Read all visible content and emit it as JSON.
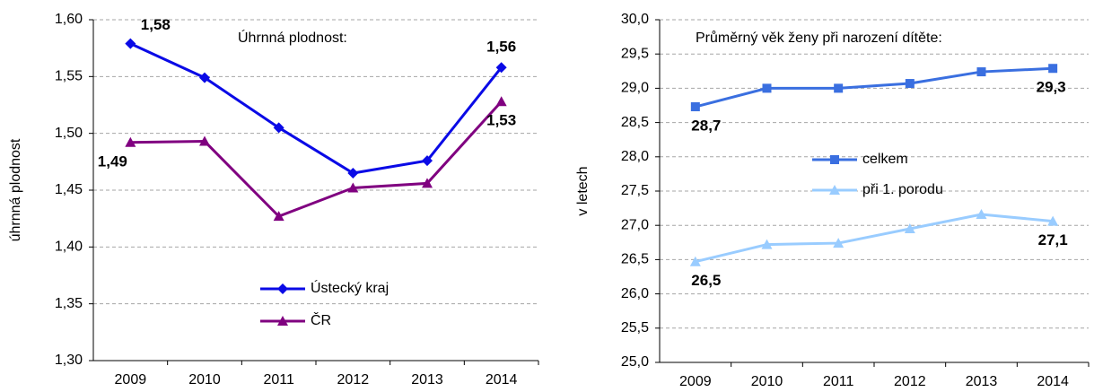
{
  "chart_data": [
    {
      "type": "line",
      "annotation": "Úhrnná plodnost:",
      "y_label": "úhrnná plodnost",
      "categories": [
        "2009",
        "2010",
        "2011",
        "2012",
        "2013",
        "2014"
      ],
      "ylim": [
        1.3,
        1.6
      ],
      "yticks": [
        {
          "value": 1.3,
          "label": "1,30"
        },
        {
          "value": 1.35,
          "label": "1,35"
        },
        {
          "value": 1.4,
          "label": "1,40"
        },
        {
          "value": 1.45,
          "label": "1,45"
        },
        {
          "value": 1.5,
          "label": "1,50"
        },
        {
          "value": 1.55,
          "label": "1,55"
        },
        {
          "value": 1.6,
          "label": "1,60"
        }
      ],
      "grid": true,
      "series": [
        {
          "name": "Ústecký kraj",
          "color": "#0a0ae6",
          "marker": "diamond",
          "values": [
            1.579,
            1.549,
            1.505,
            1.465,
            1.476,
            1.558
          ],
          "value_labels": [
            "1,58",
            null,
            null,
            null,
            null,
            "1,56"
          ]
        },
        {
          "name": "ČR",
          "color": "#800080",
          "marker": "triangle",
          "values": [
            1.492,
            1.493,
            1.427,
            1.452,
            1.456,
            1.528
          ],
          "value_labels": [
            "1,49",
            null,
            null,
            null,
            null,
            "1,53"
          ]
        }
      ]
    },
    {
      "type": "line",
      "annotation": "Průměrný věk ženy při narození dítěte:",
      "y_label": "v letech",
      "categories": [
        "2009",
        "2010",
        "2011",
        "2012",
        "2013",
        "2014"
      ],
      "ylim": [
        25,
        30
      ],
      "yticks": [
        {
          "value": 25,
          "label": "25,0"
        },
        {
          "value": 25.5,
          "label": "25,5"
        },
        {
          "value": 26,
          "label": "26,0"
        },
        {
          "value": 26.5,
          "label": "26,5"
        },
        {
          "value": 27,
          "label": "27,0"
        },
        {
          "value": 27.5,
          "label": "27,5"
        },
        {
          "value": 28,
          "label": "28,0"
        },
        {
          "value": 28.5,
          "label": "28,5"
        },
        {
          "value": 29,
          "label": "29,0"
        },
        {
          "value": 29.5,
          "label": "29,5"
        },
        {
          "value": 30,
          "label": "30,0"
        }
      ],
      "grid": true,
      "series": [
        {
          "name": "celkem",
          "color": "#3a6fe0",
          "marker": "square",
          "values": [
            28.73,
            29.0,
            29.0,
            29.07,
            29.24,
            29.29
          ],
          "value_labels": [
            "28,7",
            null,
            null,
            null,
            null,
            "29,3"
          ]
        },
        {
          "name": "při 1. porodu",
          "color": "#99ccff",
          "marker": "triangle",
          "values": [
            26.47,
            26.72,
            26.74,
            26.95,
            27.16,
            27.06
          ],
          "value_labels": [
            "26,5",
            null,
            null,
            null,
            null,
            "27,1"
          ]
        }
      ]
    }
  ]
}
